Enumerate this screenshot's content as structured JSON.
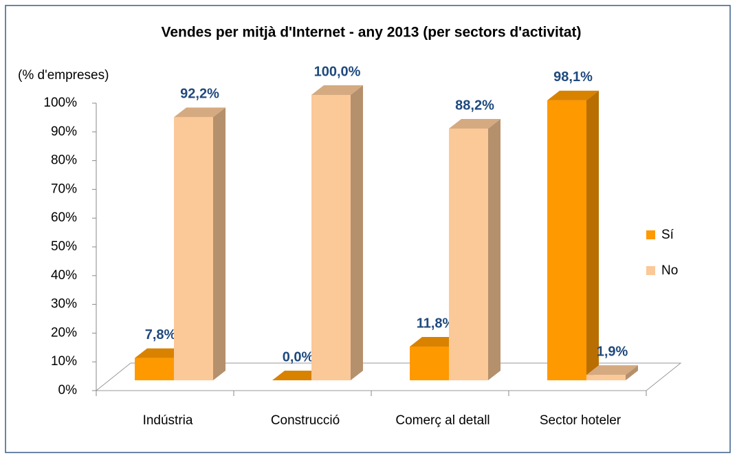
{
  "chart_data": {
    "type": "bar3d",
    "title": "Vendes per mitjà d'Internet - any 2013 (per sectors d'activitat)",
    "y_label": "(% d'empreses)",
    "categories": [
      "Indústria",
      "Construcció",
      "Comerç al detall",
      "Sector hoteler"
    ],
    "series": [
      {
        "name": "Sí",
        "color": "#ff9900",
        "values": [
          7.8,
          0.0,
          11.8,
          98.1
        ],
        "value_labels": [
          "7,8%",
          "0,0%",
          "11,8%",
          "98,1%"
        ]
      },
      {
        "name": "No",
        "color": "#fbc898",
        "values": [
          92.2,
          100.0,
          88.2,
          1.9
        ],
        "value_labels": [
          "92,2%",
          "100,0%",
          "88,2%",
          "1,9%"
        ]
      }
    ],
    "ylim": [
      0,
      100
    ],
    "yticks": [
      {
        "value": 0,
        "label": "0%"
      },
      {
        "value": 10,
        "label": "10%"
      },
      {
        "value": 20,
        "label": "20%"
      },
      {
        "value": 30,
        "label": "30%"
      },
      {
        "value": 40,
        "label": "40%"
      },
      {
        "value": 50,
        "label": "50%"
      },
      {
        "value": 60,
        "label": "60%"
      },
      {
        "value": 70,
        "label": "70%"
      },
      {
        "value": 80,
        "label": "80%"
      },
      {
        "value": 90,
        "label": "90%"
      },
      {
        "value": 100,
        "label": "100%"
      }
    ],
    "legend": "right"
  }
}
